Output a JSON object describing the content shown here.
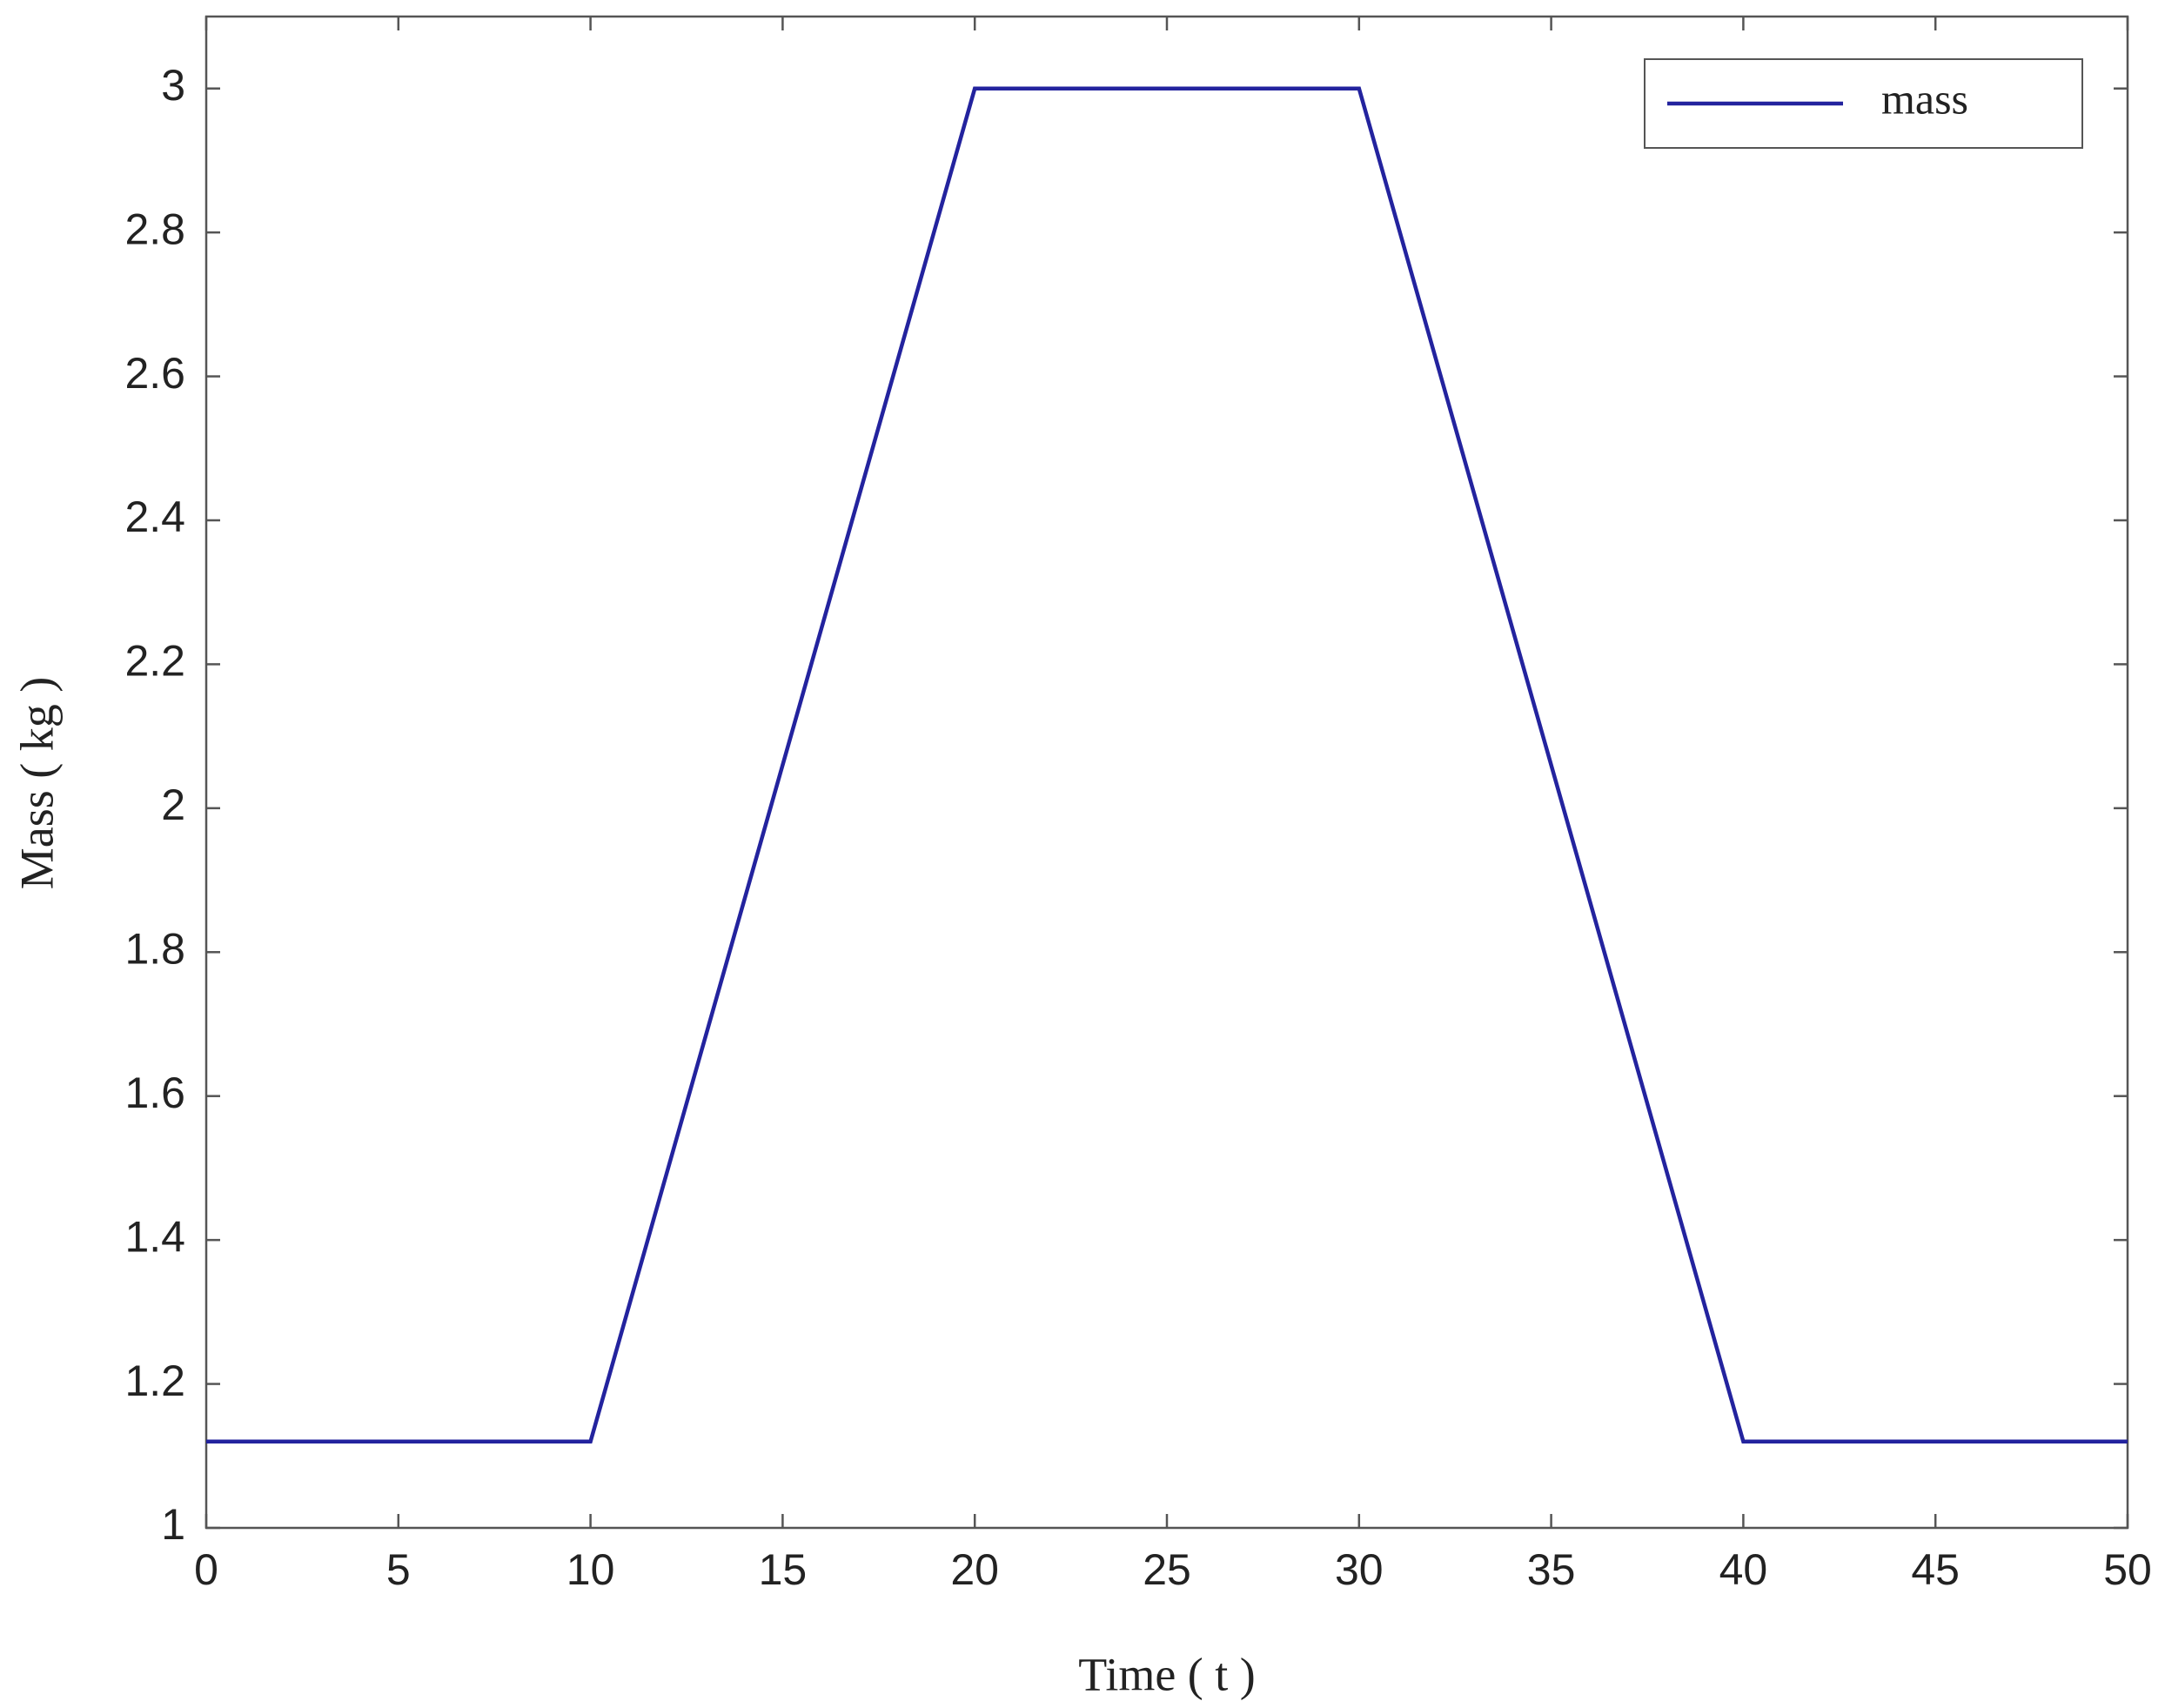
{
  "chart_data": {
    "type": "line",
    "x_label": "Time ( t )",
    "y_label": "Mass ( kg )",
    "x": [
      0,
      10,
      20,
      30,
      40,
      50
    ],
    "series": [
      {
        "name": "mass",
        "color": "#23239e",
        "values": [
          1.12,
          1.12,
          3,
          3,
          1.12,
          1.12
        ]
      }
    ],
    "xlim": [
      0,
      50
    ],
    "xticks": [
      0,
      5,
      10,
      15,
      20,
      25,
      30,
      35,
      40,
      45,
      50
    ],
    "ylim": [
      1,
      3.1
    ],
    "yticks": [
      1,
      1.2,
      1.4,
      1.6,
      1.8,
      2,
      2.2,
      2.4,
      2.6,
      2.8,
      3
    ],
    "grid": false,
    "legend": "upper right"
  }
}
